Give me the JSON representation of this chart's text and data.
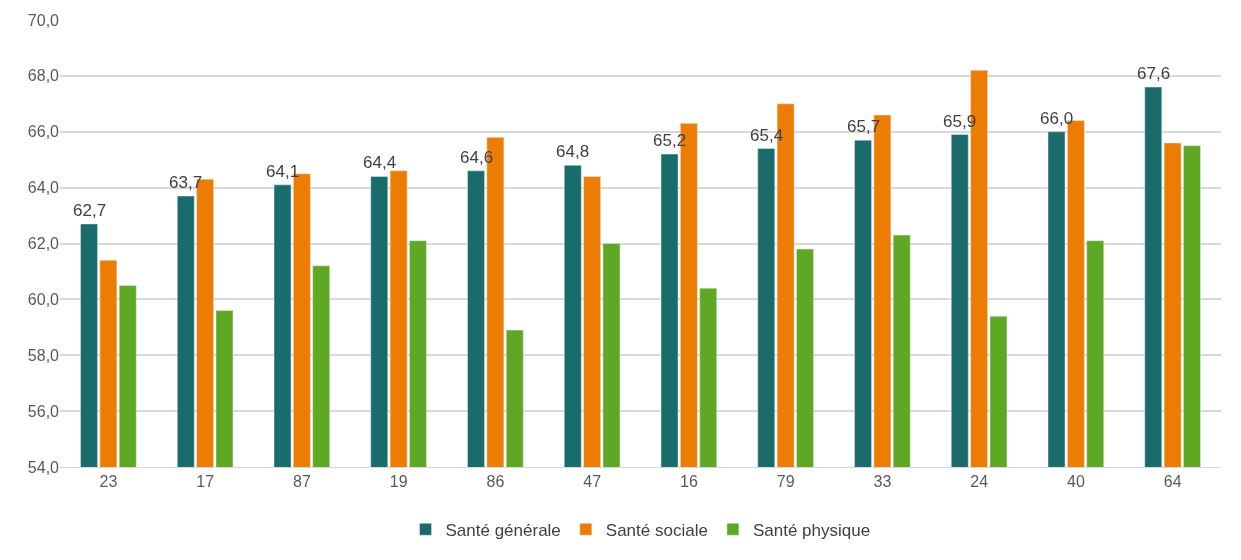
{
  "chart_data": {
    "type": "bar",
    "categories": [
      "23",
      "17",
      "87",
      "19",
      "86",
      "47",
      "16",
      "79",
      "33",
      "24",
      "40",
      "64"
    ],
    "series": [
      {
        "name": "Santé générale",
        "color": "#1a6b6b",
        "values": [
          62.7,
          63.7,
          64.1,
          64.4,
          64.6,
          64.8,
          65.2,
          65.4,
          65.7,
          65.9,
          66.0,
          67.6
        ],
        "value_labels": [
          "62,7",
          "63,7",
          "64,1",
          "64,4",
          "64,6",
          "64,8",
          "65,2",
          "65,4",
          "65,7",
          "65,9",
          "66,0",
          "67,6"
        ]
      },
      {
        "name": "Santé sociale",
        "color": "#ed7d02",
        "values": [
          61.4,
          64.3,
          64.5,
          64.6,
          65.8,
          64.4,
          66.3,
          67.0,
          66.6,
          68.2,
          66.4,
          65.6
        ]
      },
      {
        "name": "Santé physique",
        "color": "#5ea823",
        "values": [
          60.5,
          59.6,
          61.2,
          62.1,
          58.9,
          62.0,
          60.4,
          61.8,
          62.3,
          59.4,
          62.1,
          65.5
        ]
      }
    ],
    "ylim": [
      54,
      70
    ],
    "yticks": [
      {
        "value": 54,
        "label": "54,0"
      },
      {
        "value": 56,
        "label": "56,0"
      },
      {
        "value": 58,
        "label": "58,0"
      },
      {
        "value": 60,
        "label": "60,0"
      },
      {
        "value": 62,
        "label": "62,0"
      },
      {
        "value": 64,
        "label": "64,0"
      },
      {
        "value": 66,
        "label": "66,0"
      },
      {
        "value": 68,
        "label": "68,0"
      },
      {
        "value": 70,
        "label": "70,0"
      }
    ],
    "grid": "y",
    "legend": "bottom"
  }
}
